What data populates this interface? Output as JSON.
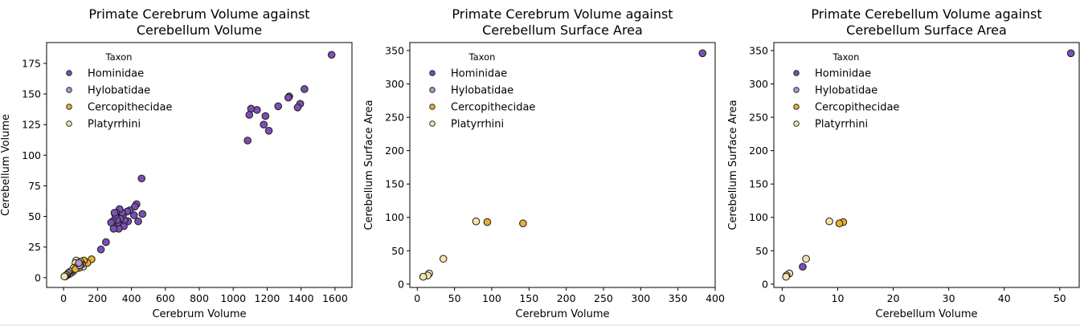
{
  "chart_data": [
    {
      "type": "scatter",
      "title": "Primate Cerebrum Volume against\nCerebellum Volume",
      "xlabel": "Cerebrum Volume",
      "ylabel": "Cerebellum Volume",
      "xlim": [
        -100,
        1700
      ],
      "ylim": [
        -8,
        192
      ],
      "xticks": [
        0,
        200,
        400,
        600,
        800,
        1000,
        1200,
        1400,
        1600
      ],
      "yticks": [
        0,
        25,
        50,
        75,
        100,
        125,
        150,
        175
      ],
      "legend": {
        "title": "Taxon",
        "placement": "top-left"
      },
      "series": [
        {
          "name": "Hominidae",
          "color": "#7b4fb3",
          "points": [
            [
              1580,
              182
            ],
            [
              1420,
              154
            ],
            [
              1395,
              142
            ],
            [
              1380,
              139
            ],
            [
              1330,
              148
            ],
            [
              1325,
              147
            ],
            [
              1265,
              140
            ],
            [
              1210,
              120
            ],
            [
              1190,
              132
            ],
            [
              1180,
              125
            ],
            [
              1140,
              137
            ],
            [
              1105,
              138
            ],
            [
              1095,
              133
            ],
            [
              1085,
              112
            ],
            [
              460,
              81
            ],
            [
              465,
              52
            ],
            [
              430,
              60
            ],
            [
              440,
              46
            ],
            [
              420,
              58
            ],
            [
              415,
              51
            ],
            [
              390,
              55
            ],
            [
              380,
              46
            ],
            [
              375,
              54
            ],
            [
              360,
              47
            ],
            [
              355,
              42
            ],
            [
              350,
              51
            ],
            [
              345,
              53
            ],
            [
              335,
              48
            ],
            [
              330,
              56
            ],
            [
              325,
              40
            ],
            [
              320,
              45
            ],
            [
              315,
              47
            ],
            [
              310,
              53
            ],
            [
              305,
              51
            ],
            [
              300,
              53
            ],
            [
              295,
              40
            ],
            [
              290,
              46
            ],
            [
              280,
              45
            ],
            [
              250,
              29
            ],
            [
              220,
              23
            ]
          ]
        },
        {
          "name": "Hylobatidae",
          "color": "#b294d6",
          "points": [
            [
              100,
              11
            ],
            [
              95,
              10
            ],
            [
              90,
              12
            ]
          ]
        },
        {
          "name": "Cercopithecidae",
          "color": "#e8ae35",
          "points": [
            [
              165,
              15
            ],
            [
              140,
              12
            ],
            [
              120,
              14
            ],
            [
              110,
              11
            ],
            [
              100,
              13
            ],
            [
              90,
              8
            ],
            [
              80,
              9
            ],
            [
              70,
              7
            ]
          ]
        },
        {
          "name": "Platyrrhini",
          "color": "#f5e3ad",
          "points": [
            [
              130,
              12
            ],
            [
              115,
              9
            ],
            [
              105,
              12
            ],
            [
              90,
              13
            ],
            [
              80,
              11
            ],
            [
              75,
              14
            ],
            [
              70,
              12
            ],
            [
              60,
              8
            ],
            [
              55,
              5
            ],
            [
              45,
              4
            ],
            [
              40,
              5
            ],
            [
              35,
              3
            ],
            [
              30,
              4
            ],
            [
              25,
              3
            ],
            [
              20,
              2
            ],
            [
              15,
              2
            ],
            [
              10,
              1
            ],
            [
              8,
              1
            ],
            [
              5,
              1
            ]
          ]
        }
      ]
    },
    {
      "type": "scatter",
      "title": "Primate Cerebrum Volume against\nCerebellum Surface Area",
      "xlabel": "Cerebrum Volume",
      "ylabel": "Cerebellum Surface Area",
      "xlim": [
        -10,
        400
      ],
      "ylim": [
        -5,
        362
      ],
      "xticks": [
        0,
        50,
        100,
        150,
        200,
        250,
        300,
        350,
        400
      ],
      "yticks": [
        0,
        50,
        100,
        150,
        200,
        250,
        300,
        350
      ],
      "legend": {
        "title": "Taxon",
        "placement": "top-left"
      },
      "series": [
        {
          "name": "Hominidae",
          "color": "#7b4fb3",
          "points": [
            [
              383,
              346
            ]
          ]
        },
        {
          "name": "Hylobatidae",
          "color": "#b294d6",
          "points": []
        },
        {
          "name": "Cercopithecidae",
          "color": "#e8ae35",
          "points": [
            [
              142,
              91
            ],
            [
              94,
              93
            ]
          ]
        },
        {
          "name": "Platyrrhini",
          "color": "#f5e3ad",
          "points": [
            [
              79,
              94
            ],
            [
              35,
              38
            ],
            [
              16,
              16
            ],
            [
              14,
              13
            ],
            [
              8,
              11
            ]
          ]
        }
      ]
    },
    {
      "type": "scatter",
      "title": "Primate Cerebellum Volume against\nCerebellum Surface Area",
      "xlabel": "Cerebellum Volume",
      "ylabel": "Cerebellum Surface Area",
      "xlim": [
        -1.5,
        53.5
      ],
      "ylim": [
        -5,
        362
      ],
      "xticks": [
        0,
        10,
        20,
        30,
        40,
        50
      ],
      "yticks": [
        0,
        50,
        100,
        150,
        200,
        250,
        300,
        350
      ],
      "legend": {
        "title": "Taxon",
        "placement": "top-left"
      },
      "series": [
        {
          "name": "Hominidae",
          "color": "#7b4fb3",
          "points": [
            [
              52,
              346
            ],
            [
              3.7,
              26
            ]
          ]
        },
        {
          "name": "Hylobatidae",
          "color": "#b294d6",
          "points": []
        },
        {
          "name": "Cercopithecidae",
          "color": "#e8ae35",
          "points": [
            [
              11,
              93
            ],
            [
              10.3,
              91
            ]
          ]
        },
        {
          "name": "Platyrrhini",
          "color": "#f5e3ad",
          "points": [
            [
              8.5,
              94
            ],
            [
              4.3,
              38
            ],
            [
              1.3,
              16
            ],
            [
              0.8,
              13
            ],
            [
              0.7,
              11
            ]
          ]
        }
      ]
    }
  ]
}
